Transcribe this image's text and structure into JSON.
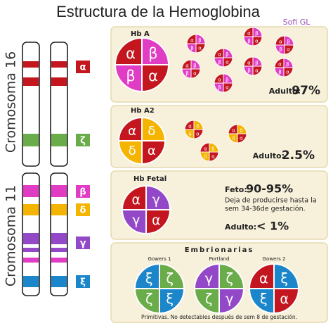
{
  "title": "Estructura de la Hemoglobina",
  "author": "Sofi GL",
  "chromosomes": [
    {
      "label": "Cromosoma 16",
      "genes": [
        {
          "symbol": "α",
          "color": "#c4161f"
        },
        {
          "symbol": "ζ",
          "color": "#6aac4a"
        }
      ]
    },
    {
      "label": "Cromosoma 11",
      "genes": [
        {
          "symbol": "β",
          "color": "#e03cc4"
        },
        {
          "symbol": "δ",
          "color": "#f4b400"
        },
        {
          "symbol": "γ",
          "color": "#9348c8"
        },
        {
          "symbol": "ξ",
          "color": "#1b86c9"
        }
      ]
    }
  ],
  "panels": [
    {
      "name": "Hb A",
      "subunits": [
        "α",
        "β",
        "β",
        "α"
      ],
      "stage": "Adulto:",
      "value": "97%"
    },
    {
      "name": "Hb A2",
      "subunits": [
        "α",
        "δ",
        "δ",
        "α"
      ],
      "stage": "Adulto:",
      "value": "2.5%"
    },
    {
      "name": "Hb Fetal",
      "subunits": [
        "α",
        "γ",
        "γ",
        "α"
      ],
      "stage": "Feto:",
      "value": "90-95%",
      "note": [
        "Deja de producirse hasta la",
        "sem 34-36de gestación."
      ],
      "stage2": "Adulto:",
      "value2": "< 1%"
    }
  ],
  "embryonic": {
    "title": "Embrionarias",
    "types": [
      {
        "name": "Gowers 1",
        "subunits": [
          "ξ",
          "ζ",
          "ζ",
          "ξ"
        ]
      },
      {
        "name": "Portland",
        "subunits": [
          "γ",
          "ζ",
          "ζ",
          "γ"
        ]
      },
      {
        "name": "Gowers 2",
        "subunits": [
          "α",
          "ξ",
          "ξ",
          "α"
        ]
      }
    ],
    "note": "Primitivas. No detectables después de sem 8 de gestación."
  }
}
